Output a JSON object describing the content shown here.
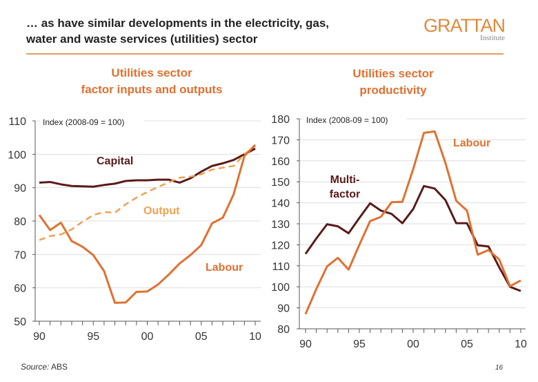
{
  "header": {
    "title_line1": "… as have similar developments in the electricity, gas,",
    "title_line2": "water and waste services (utilities) sector",
    "logo_main": "GRATTAN",
    "logo_sub": "Institute"
  },
  "footer": {
    "source_label": "Source:",
    "source": " ABS",
    "page": "16"
  },
  "colors": {
    "labour": "#e07030",
    "capital": "#5a1a1a",
    "output": "#f0a050",
    "accent": "#e08a3a"
  },
  "chart_data": [
    {
      "type": "line",
      "title_line1": "Utilities sector",
      "title_line2": "factor inputs and outputs",
      "ylabel": "Index (2008-09 = 100)",
      "ylim": [
        50,
        110
      ],
      "yticks": [
        50,
        60,
        70,
        80,
        90,
        100,
        110
      ],
      "xlim": [
        1990,
        2010
      ],
      "xticks": [
        "90",
        "95",
        "00",
        "05",
        "10"
      ],
      "grid": true,
      "x": [
        1990,
        1991,
        1992,
        1993,
        1994,
        1995,
        1996,
        1997,
        1998,
        1999,
        2000,
        2001,
        2002,
        2003,
        2004,
        2005,
        2006,
        2007,
        2008,
        2009,
        2010
      ],
      "series": [
        {
          "name": "Capital",
          "style": "solid",
          "color": "#5a1a1a",
          "values": [
            91.5,
            91.7,
            91,
            90.5,
            90.4,
            90.3,
            90.8,
            91.2,
            92,
            92.2,
            92.2,
            92.4,
            92.4,
            91.5,
            92.8,
            94.8,
            96.5,
            97.3,
            98.3,
            100,
            101.7
          ]
        },
        {
          "name": "Output",
          "style": "dashed",
          "color": "#f0a050",
          "values": [
            74.3,
            75.5,
            76,
            77.5,
            79.8,
            81.8,
            82.7,
            82.5,
            85,
            87,
            88.7,
            90.2,
            91.6,
            93,
            93.3,
            94,
            95.4,
            96,
            96.5,
            100,
            102.5
          ]
        },
        {
          "name": "Labour",
          "style": "solid",
          "color": "#e07030",
          "values": [
            81.8,
            77.3,
            79.5,
            74,
            72.3,
            69.8,
            65,
            55.5,
            55.6,
            58.8,
            58.9,
            61,
            64,
            67.3,
            69.8,
            72.8,
            79.3,
            81,
            88,
            99.5,
            102.8
          ]
        }
      ]
    },
    {
      "type": "line",
      "title_line1": "Utilities sector",
      "title_line2": "productivity",
      "ylabel": "Index (2008-09 = 100)",
      "ylim": [
        80,
        180
      ],
      "yticks": [
        80,
        90,
        100,
        110,
        120,
        130,
        140,
        150,
        160,
        170,
        180
      ],
      "xlim": [
        1990,
        2010
      ],
      "xticks": [
        "90",
        "95",
        "00",
        "05",
        "10"
      ],
      "grid": true,
      "x": [
        1990,
        1991,
        1992,
        1993,
        1994,
        1995,
        1996,
        1997,
        1998,
        1999,
        2000,
        2001,
        2002,
        2003,
        2004,
        2005,
        2006,
        2007,
        2008,
        2009,
        2010
      ],
      "series": [
        {
          "name": "Multi-factor",
          "label_line1": "Multi-",
          "label_line2": "factor",
          "style": "solid",
          "color": "#5a1a1a",
          "values": [
            115.7,
            123,
            129.8,
            128.8,
            125.5,
            132.8,
            139.8,
            136.3,
            134.7,
            130.3,
            137,
            148,
            146.8,
            141.3,
            130.3,
            130.3,
            119.8,
            119.2,
            109.3,
            100,
            98
          ]
        },
        {
          "name": "Labour",
          "style": "solid",
          "color": "#e07030",
          "values": [
            87,
            99,
            109.7,
            113.8,
            108.2,
            120,
            131.3,
            133.3,
            140.3,
            140.5,
            156,
            173.3,
            174,
            159,
            141,
            136.3,
            115.3,
            117.5,
            113,
            100.3,
            103
          ]
        }
      ]
    }
  ]
}
